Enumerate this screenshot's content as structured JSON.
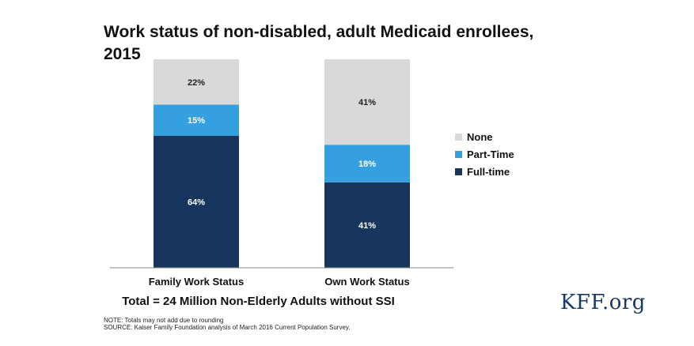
{
  "chart_data": {
    "type": "bar",
    "stacked": true,
    "title": "Work status of non-disabled, adult Medicaid enrollees, 2015",
    "categories": [
      "Family Work Status",
      "Own Work Status"
    ],
    "series": [
      {
        "name": "Full-time",
        "values": [
          64,
          41
        ],
        "labels": [
          "64%",
          "41%"
        ],
        "color": "#17365d"
      },
      {
        "name": "Part-Time",
        "values": [
          15,
          18
        ],
        "labels": [
          "15%",
          "18%"
        ],
        "color": "#34a0e0"
      },
      {
        "name": "None",
        "values": [
          22,
          41
        ],
        "labels": [
          "22%",
          "41%"
        ],
        "color": "#d9d9d9"
      }
    ],
    "legend": [
      "None",
      "Part-Time",
      "Full-time"
    ],
    "legend_position": "right",
    "ylim": [
      0,
      100
    ],
    "grid": false
  },
  "footer": {
    "total": "Total = 24 Million Non-Elderly Adults without SSI",
    "note": "NOTE:  Totals may not add due to rounding",
    "source": "SOURCE: Kaiser Family Foundation  analysis of March 2016 Current Population Survey."
  },
  "brand": "KFF.org",
  "colors": {
    "text": "#111111",
    "label_dark": "#222222",
    "label_light": "#ffffff",
    "brand": "#1a3a63",
    "axis": "#888888"
  }
}
